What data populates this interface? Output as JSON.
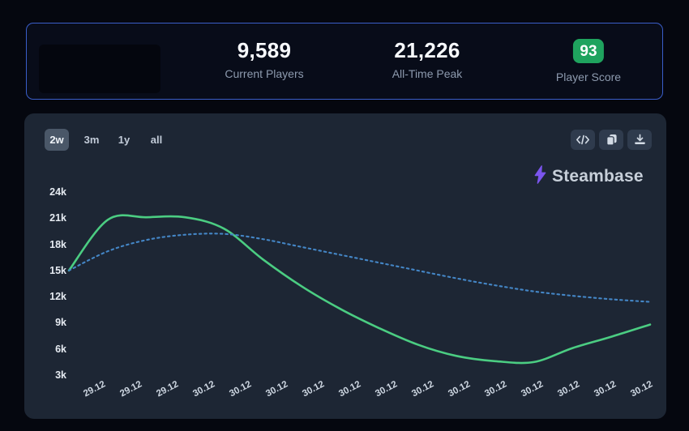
{
  "header": {
    "border_color": "#3a5ec9",
    "badge_color": "#1fa35e",
    "stats": [
      {
        "value": "9,589",
        "label": "Current Players"
      },
      {
        "value": "21,226",
        "label": "All-Time Peak"
      },
      {
        "value": "93",
        "label": "Player Score"
      }
    ]
  },
  "toolbar": {
    "ranges": [
      {
        "label": "2w",
        "active": true
      },
      {
        "label": "3m",
        "active": false
      },
      {
        "label": "1y",
        "active": false
      },
      {
        "label": "all",
        "active": false
      }
    ],
    "icon_buttons": [
      "embed-code-icon",
      "copy-icon",
      "download-icon"
    ]
  },
  "watermark": {
    "text": "Steambase",
    "logo_color": "#7b55ee"
  },
  "chart_data": {
    "type": "line",
    "title": "",
    "xlabel": "",
    "ylabel": "",
    "grid": false,
    "legend": "none",
    "y_axis_range": [
      3000,
      24000
    ],
    "y_tick_labels": [
      "24k",
      "21k",
      "18k",
      "15k",
      "12k",
      "9k",
      "6k",
      "3k"
    ],
    "x_labels": [
      "29.12",
      "29.12",
      "29.12",
      "30.12",
      "30.12",
      "30.12",
      "30.12",
      "30.12",
      "30.12",
      "30.12",
      "30.12",
      "30.12",
      "30.12",
      "30.12",
      "30.12",
      "30.12"
    ],
    "series": [
      {
        "name": "players-solid",
        "line_style": "solid",
        "color": "#4bcd82",
        "values": [
          15000,
          20800,
          21100,
          21100,
          19800,
          16300,
          13200,
          10600,
          8400,
          6500,
          5200,
          4600,
          4500,
          6100,
          7400,
          8800
        ]
      },
      {
        "name": "players-trend-dotted",
        "line_style": "dotted",
        "color": "#4486c6",
        "values": [
          15000,
          17200,
          18500,
          19100,
          19200,
          18600,
          17700,
          16800,
          15900,
          15000,
          14100,
          13300,
          12600,
          12100,
          11700,
          11400
        ]
      }
    ]
  }
}
